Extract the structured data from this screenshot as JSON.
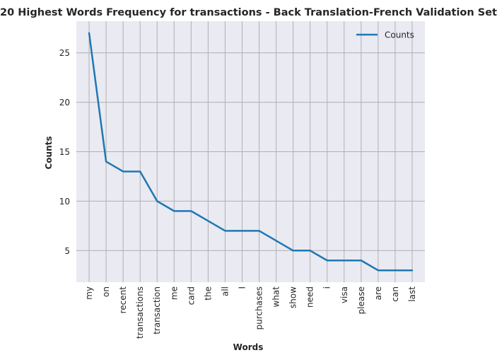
{
  "chart_data": {
    "type": "line",
    "title": "20 Highest Words Frequency for transactions - Back Translation-French Validation Set",
    "xlabel": "Words",
    "ylabel": "Counts",
    "categories": [
      "my",
      "on",
      "recent",
      "transactions",
      "transaction",
      "me",
      "card",
      "the",
      "all",
      "I",
      "purchases",
      "what",
      "show",
      "need",
      "i",
      "visa",
      "please",
      "are",
      "can",
      "last"
    ],
    "series": [
      {
        "name": "Counts",
        "values": [
          27,
          14,
          13,
          13,
          10,
          9,
          9,
          8,
          7,
          7,
          7,
          6,
          5,
          5,
          4,
          4,
          4,
          3,
          3,
          3
        ],
        "color": "#1f77b4"
      }
    ],
    "yticks": [
      5,
      10,
      15,
      20,
      25
    ],
    "ylim": [
      1.8,
      28.2
    ],
    "grid": true,
    "legend_position": "top-right",
    "colors": {
      "plot_background": "#eaeaf2",
      "grid": "#b0b0b0",
      "line": "#1f77b4",
      "text": "#262626"
    }
  }
}
